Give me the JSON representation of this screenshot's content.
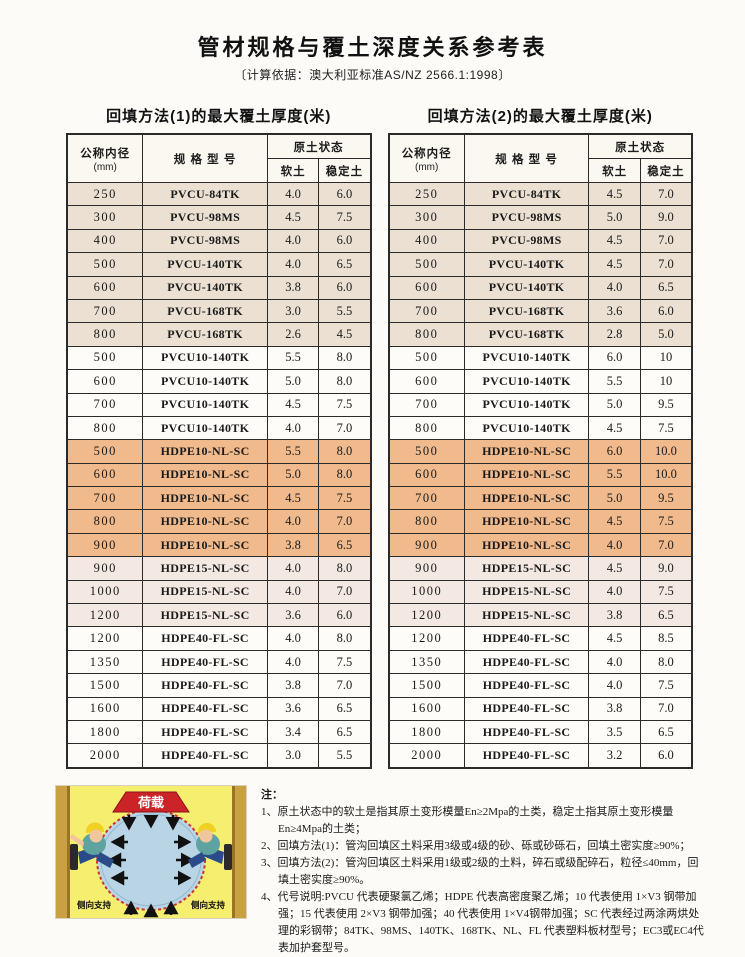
{
  "page": {
    "title": "管材规格与覆土深度关系参考表",
    "subtitle": "〔计算依据：澳大利亚标准AS/NZ 2566.1:1998〕"
  },
  "colors": {
    "row_groups": {
      "pvcu": "#ebe0d2",
      "pvcu10": "#fdfcf8",
      "hdpe10": "#f0ba8d",
      "hdpe15": "#f3e9e2",
      "hdpe40": "#fdfcf8"
    },
    "load_banner": "#cc2328",
    "pipe_fill": "#b9d5e5",
    "diagram_bg": "#f5ee6e",
    "soil_wall": "#c9a143"
  },
  "tables": [
    {
      "caption": "回填方法(1)的最大覆土厚度(米)",
      "headers": {
        "diameter": "公称内径",
        "diameter_unit": "(mm)",
        "model": "规 格 型 号",
        "soil_state": "原土状态",
        "soft": "软土",
        "stable": "稳定土"
      },
      "rows": [
        {
          "dn": "250",
          "model": "PVCU-84TK",
          "soft": "4.0",
          "stable": "6.0",
          "group": "pvcu"
        },
        {
          "dn": "300",
          "model": "PVCU-98MS",
          "soft": "4.5",
          "stable": "7.5",
          "group": "pvcu"
        },
        {
          "dn": "400",
          "model": "PVCU-98MS",
          "soft": "4.0",
          "stable": "6.0",
          "group": "pvcu"
        },
        {
          "dn": "500",
          "model": "PVCU-140TK",
          "soft": "4.0",
          "stable": "6.5",
          "group": "pvcu"
        },
        {
          "dn": "600",
          "model": "PVCU-140TK",
          "soft": "3.8",
          "stable": "6.0",
          "group": "pvcu"
        },
        {
          "dn": "700",
          "model": "PVCU-168TK",
          "soft": "3.0",
          "stable": "5.5",
          "group": "pvcu"
        },
        {
          "dn": "800",
          "model": "PVCU-168TK",
          "soft": "2.6",
          "stable": "4.5",
          "group": "pvcu"
        },
        {
          "dn": "500",
          "model": "PVCU10-140TK",
          "soft": "5.5",
          "stable": "8.0",
          "group": "pvcu10"
        },
        {
          "dn": "600",
          "model": "PVCU10-140TK",
          "soft": "5.0",
          "stable": "8.0",
          "group": "pvcu10"
        },
        {
          "dn": "700",
          "model": "PVCU10-140TK",
          "soft": "4.5",
          "stable": "7.5",
          "group": "pvcu10"
        },
        {
          "dn": "800",
          "model": "PVCU10-140TK",
          "soft": "4.0",
          "stable": "7.0",
          "group": "pvcu10"
        },
        {
          "dn": "500",
          "model": "HDPE10-NL-SC",
          "soft": "5.5",
          "stable": "8.0",
          "group": "hdpe10"
        },
        {
          "dn": "600",
          "model": "HDPE10-NL-SC",
          "soft": "5.0",
          "stable": "8.0",
          "group": "hdpe10"
        },
        {
          "dn": "700",
          "model": "HDPE10-NL-SC",
          "soft": "4.5",
          "stable": "7.5",
          "group": "hdpe10"
        },
        {
          "dn": "800",
          "model": "HDPE10-NL-SC",
          "soft": "4.0",
          "stable": "7.0",
          "group": "hdpe10"
        },
        {
          "dn": "900",
          "model": "HDPE10-NL-SC",
          "soft": "3.8",
          "stable": "6.5",
          "group": "hdpe10"
        },
        {
          "dn": "900",
          "model": "HDPE15-NL-SC",
          "soft": "4.0",
          "stable": "8.0",
          "group": "hdpe15"
        },
        {
          "dn": "1000",
          "model": "HDPE15-NL-SC",
          "soft": "4.0",
          "stable": "7.0",
          "group": "hdpe15"
        },
        {
          "dn": "1200",
          "model": "HDPE15-NL-SC",
          "soft": "3.6",
          "stable": "6.0",
          "group": "hdpe15"
        },
        {
          "dn": "1200",
          "model": "HDPE40-FL-SC",
          "soft": "4.0",
          "stable": "8.0",
          "group": "hdpe40"
        },
        {
          "dn": "1350",
          "model": "HDPE40-FL-SC",
          "soft": "4.0",
          "stable": "7.5",
          "group": "hdpe40"
        },
        {
          "dn": "1500",
          "model": "HDPE40-FL-SC",
          "soft": "3.8",
          "stable": "7.0",
          "group": "hdpe40"
        },
        {
          "dn": "1600",
          "model": "HDPE40-FL-SC",
          "soft": "3.6",
          "stable": "6.5",
          "group": "hdpe40"
        },
        {
          "dn": "1800",
          "model": "HDPE40-FL-SC",
          "soft": "3.4",
          "stable": "6.5",
          "group": "hdpe40"
        },
        {
          "dn": "2000",
          "model": "HDPE40-FL-SC",
          "soft": "3.0",
          "stable": "5.5",
          "group": "hdpe40"
        }
      ]
    },
    {
      "caption": "回填方法(2)的最大覆土厚度(米)",
      "headers": {
        "diameter": "公称内径",
        "diameter_unit": "(mm)",
        "model": "规 格 型 号",
        "soil_state": "原土状态",
        "soft": "软土",
        "stable": "稳定土"
      },
      "rows": [
        {
          "dn": "250",
          "model": "PVCU-84TK",
          "soft": "4.5",
          "stable": "7.0",
          "group": "pvcu"
        },
        {
          "dn": "300",
          "model": "PVCU-98MS",
          "soft": "5.0",
          "stable": "9.0",
          "group": "pvcu"
        },
        {
          "dn": "400",
          "model": "PVCU-98MS",
          "soft": "4.5",
          "stable": "7.0",
          "group": "pvcu"
        },
        {
          "dn": "500",
          "model": "PVCU-140TK",
          "soft": "4.5",
          "stable": "7.0",
          "group": "pvcu"
        },
        {
          "dn": "600",
          "model": "PVCU-140TK",
          "soft": "4.0",
          "stable": "6.5",
          "group": "pvcu"
        },
        {
          "dn": "700",
          "model": "PVCU-168TK",
          "soft": "3.6",
          "stable": "6.0",
          "group": "pvcu"
        },
        {
          "dn": "800",
          "model": "PVCU-168TK",
          "soft": "2.8",
          "stable": "5.0",
          "group": "pvcu"
        },
        {
          "dn": "500",
          "model": "PVCU10-140TK",
          "soft": "6.0",
          "stable": "10",
          "group": "pvcu10"
        },
        {
          "dn": "600",
          "model": "PVCU10-140TK",
          "soft": "5.5",
          "stable": "10",
          "group": "pvcu10"
        },
        {
          "dn": "700",
          "model": "PVCU10-140TK",
          "soft": "5.0",
          "stable": "9.5",
          "group": "pvcu10"
        },
        {
          "dn": "800",
          "model": "PVCU10-140TK",
          "soft": "4.5",
          "stable": "7.5",
          "group": "pvcu10"
        },
        {
          "dn": "500",
          "model": "HDPE10-NL-SC",
          "soft": "6.0",
          "stable": "10.0",
          "group": "hdpe10"
        },
        {
          "dn": "600",
          "model": "HDPE10-NL-SC",
          "soft": "5.5",
          "stable": "10.0",
          "group": "hdpe10"
        },
        {
          "dn": "700",
          "model": "HDPE10-NL-SC",
          "soft": "5.0",
          "stable": "9.5",
          "group": "hdpe10"
        },
        {
          "dn": "800",
          "model": "HDPE10-NL-SC",
          "soft": "4.5",
          "stable": "7.5",
          "group": "hdpe10"
        },
        {
          "dn": "900",
          "model": "HDPE10-NL-SC",
          "soft": "4.0",
          "stable": "7.0",
          "group": "hdpe10"
        },
        {
          "dn": "900",
          "model": "HDPE15-NL-SC",
          "soft": "4.5",
          "stable": "9.0",
          "group": "hdpe15"
        },
        {
          "dn": "1000",
          "model": "HDPE15-NL-SC",
          "soft": "4.0",
          "stable": "7.5",
          "group": "hdpe15"
        },
        {
          "dn": "1200",
          "model": "HDPE15-NL-SC",
          "soft": "3.8",
          "stable": "6.5",
          "group": "hdpe15"
        },
        {
          "dn": "1200",
          "model": "HDPE40-FL-SC",
          "soft": "4.5",
          "stable": "8.5",
          "group": "hdpe40"
        },
        {
          "dn": "1350",
          "model": "HDPE40-FL-SC",
          "soft": "4.0",
          "stable": "8.0",
          "group": "hdpe40"
        },
        {
          "dn": "1500",
          "model": "HDPE40-FL-SC",
          "soft": "4.0",
          "stable": "7.5",
          "group": "hdpe40"
        },
        {
          "dn": "1600",
          "model": "HDPE40-FL-SC",
          "soft": "3.8",
          "stable": "7.0",
          "group": "hdpe40"
        },
        {
          "dn": "1800",
          "model": "HDPE40-FL-SC",
          "soft": "3.5",
          "stable": "6.5",
          "group": "hdpe40"
        },
        {
          "dn": "2000",
          "model": "HDPE40-FL-SC",
          "soft": "3.2",
          "stable": "6.0",
          "group": "hdpe40"
        }
      ]
    }
  ],
  "diagram": {
    "load_label": "荷载",
    "left_support_label": "侧向支持",
    "right_support_label": "侧向支持"
  },
  "notes": {
    "label": "注：",
    "items": [
      "1、原土状态中的软土是指其原土变形模量En≥2Mpa的土类，稳定土指其原土变形模量En≥4Mpa的土类；",
      "2、回填方法(1)：管沟回填区土料采用3级或4级的砂、砾或砂砾石，回填土密实度≥90%；",
      "3、回填方法(2)：管沟回填区土料采用1级或2级的土料，碎石或级配碎石，粒径≤40mm，回填土密实度≥90%。",
      "4、代号说明:PVCU 代表硬聚氯乙烯；HDPE 代表高密度聚乙烯；10 代表使用 1×V3 钢带加强；15 代表使用 2×V3 钢带加强；40 代表使用 1×V4钢带加强；SC 代表经过两涂两烘处理的彩钢带；84TK、98MS、140TK、168TK、NL、FL 代表塑料板材型号；EC3或EC4代表加护套型号。"
    ]
  }
}
